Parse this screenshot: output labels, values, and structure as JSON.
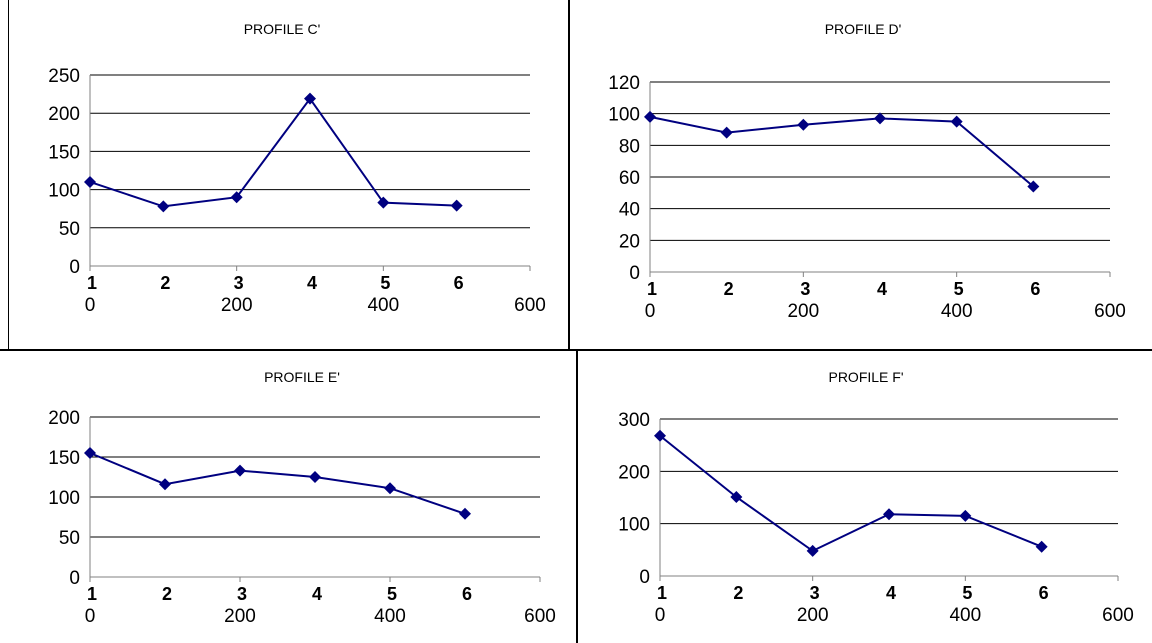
{
  "chart_data": [
    {
      "type": "line",
      "title": "PROFILE C'",
      "x": [
        0,
        100,
        200,
        300,
        400,
        500
      ],
      "point_labels": [
        "1",
        "2",
        "3",
        "4",
        "5",
        "6"
      ],
      "series": [
        {
          "values": [
            110,
            78,
            90,
            219,
            83,
            79
          ]
        }
      ],
      "xlim": [
        0,
        600
      ],
      "ylim": [
        0,
        250
      ],
      "xticks": [
        0,
        200,
        400,
        600
      ],
      "yticks": [
        0,
        50,
        100,
        150,
        200,
        250
      ],
      "grid": true,
      "legend": "none",
      "color": "#000080"
    },
    {
      "type": "line",
      "title": "PROFILE D'",
      "x": [
        0,
        100,
        200,
        300,
        400,
        500
      ],
      "point_labels": [
        "1",
        "2",
        "3",
        "4",
        "5",
        "6"
      ],
      "series": [
        {
          "values": [
            98,
            88,
            93,
            97,
            95,
            54
          ]
        }
      ],
      "xlim": [
        0,
        600
      ],
      "ylim": [
        0,
        120
      ],
      "xticks": [
        0,
        200,
        400,
        600
      ],
      "yticks": [
        0,
        20,
        40,
        60,
        80,
        100,
        120
      ],
      "grid": true,
      "legend": "none",
      "color": "#000080"
    },
    {
      "type": "line",
      "title": "PROFILE E'",
      "x": [
        0,
        100,
        200,
        300,
        400,
        500
      ],
      "point_labels": [
        "1",
        "2",
        "3",
        "4",
        "5",
        "6"
      ],
      "series": [
        {
          "values": [
            155,
            116,
            133,
            125,
            111,
            79
          ]
        }
      ],
      "xlim": [
        0,
        600
      ],
      "ylim": [
        0,
        200
      ],
      "xticks": [
        0,
        200,
        400,
        600
      ],
      "yticks": [
        0,
        50,
        100,
        150,
        200
      ],
      "grid": true,
      "legend": "none",
      "color": "#000080"
    },
    {
      "type": "line",
      "title": "PROFILE F'",
      "x": [
        0,
        100,
        200,
        300,
        400,
        500
      ],
      "point_labels": [
        "1",
        "2",
        "3",
        "4",
        "5",
        "6"
      ],
      "series": [
        {
          "values": [
            268,
            151,
            48,
            118,
            115,
            56
          ]
        }
      ],
      "xlim": [
        0,
        600
      ],
      "ylim": [
        0,
        300
      ],
      "xticks": [
        0,
        200,
        400,
        600
      ],
      "yticks": [
        0,
        100,
        200,
        300
      ],
      "grid": true,
      "legend": "none",
      "color": "#000080"
    }
  ]
}
